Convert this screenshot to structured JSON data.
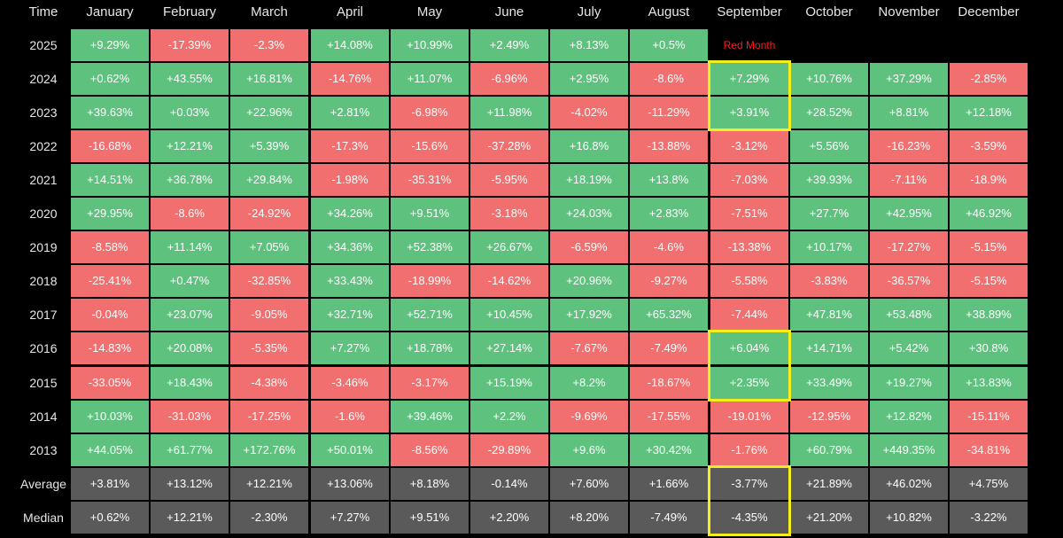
{
  "chart_data": {
    "type": "heatmap",
    "corner_label": "Time",
    "columns": [
      "January",
      "February",
      "March",
      "April",
      "May",
      "June",
      "July",
      "August",
      "September",
      "October",
      "November",
      "December"
    ],
    "rows": [
      {
        "label": "2025",
        "values": [
          "+9.29%",
          "-17.39%",
          "-2.3%",
          "+14.08%",
          "+10.99%",
          "+2.49%",
          "+8.13%",
          "+0.5%",
          null,
          null,
          null,
          null
        ]
      },
      {
        "label": "2024",
        "values": [
          "+0.62%",
          "+43.55%",
          "+16.81%",
          "-14.76%",
          "+11.07%",
          "-6.96%",
          "+2.95%",
          "-8.6%",
          "+7.29%",
          "+10.76%",
          "+37.29%",
          "-2.85%"
        ]
      },
      {
        "label": "2023",
        "values": [
          "+39.63%",
          "+0.03%",
          "+22.96%",
          "+2.81%",
          "-6.98%",
          "+11.98%",
          "-4.02%",
          "-11.29%",
          "+3.91%",
          "+28.52%",
          "+8.81%",
          "+12.18%"
        ]
      },
      {
        "label": "2022",
        "values": [
          "-16.68%",
          "+12.21%",
          "+5.39%",
          "-17.3%",
          "-15.6%",
          "-37.28%",
          "+16.8%",
          "-13.88%",
          "-3.12%",
          "+5.56%",
          "-16.23%",
          "-3.59%"
        ]
      },
      {
        "label": "2021",
        "values": [
          "+14.51%",
          "+36.78%",
          "+29.84%",
          "-1.98%",
          "-35.31%",
          "-5.95%",
          "+18.19%",
          "+13.8%",
          "-7.03%",
          "+39.93%",
          "-7.11%",
          "-18.9%"
        ]
      },
      {
        "label": "2020",
        "values": [
          "+29.95%",
          "-8.6%",
          "-24.92%",
          "+34.26%",
          "+9.51%",
          "-3.18%",
          "+24.03%",
          "+2.83%",
          "-7.51%",
          "+27.7%",
          "+42.95%",
          "+46.92%"
        ]
      },
      {
        "label": "2019",
        "values": [
          "-8.58%",
          "+11.14%",
          "+7.05%",
          "+34.36%",
          "+52.38%",
          "+26.67%",
          "-6.59%",
          "-4.6%",
          "-13.38%",
          "+10.17%",
          "-17.27%",
          "-5.15%"
        ]
      },
      {
        "label": "2018",
        "values": [
          "-25.41%",
          "+0.47%",
          "-32.85%",
          "+33.43%",
          "-18.99%",
          "-14.62%",
          "+20.96%",
          "-9.27%",
          "-5.58%",
          "-3.83%",
          "-36.57%",
          "-5.15%"
        ]
      },
      {
        "label": "2017",
        "values": [
          "-0.04%",
          "+23.07%",
          "-9.05%",
          "+32.71%",
          "+52.71%",
          "+10.45%",
          "+17.92%",
          "+65.32%",
          "-7.44%",
          "+47.81%",
          "+53.48%",
          "+38.89%"
        ]
      },
      {
        "label": "2016",
        "values": [
          "-14.83%",
          "+20.08%",
          "-5.35%",
          "+7.27%",
          "+18.78%",
          "+27.14%",
          "-7.67%",
          "-7.49%",
          "+6.04%",
          "+14.71%",
          "+5.42%",
          "+30.8%"
        ]
      },
      {
        "label": "2015",
        "values": [
          "-33.05%",
          "+18.43%",
          "-4.38%",
          "-3.46%",
          "-3.17%",
          "+15.19%",
          "+8.2%",
          "-18.67%",
          "+2.35%",
          "+33.49%",
          "+19.27%",
          "+13.83%"
        ]
      },
      {
        "label": "2014",
        "values": [
          "+10.03%",
          "-31.03%",
          "-17.25%",
          "-1.6%",
          "+39.46%",
          "+2.2%",
          "-9.69%",
          "-17.55%",
          "-19.01%",
          "-12.95%",
          "+12.82%",
          "-15.11%"
        ]
      },
      {
        "label": "2013",
        "values": [
          "+44.05%",
          "+61.77%",
          "+172.76%",
          "+50.01%",
          "-8.56%",
          "-29.89%",
          "+9.6%",
          "+30.42%",
          "-1.76%",
          "+60.79%",
          "+449.35%",
          "-34.81%"
        ]
      },
      {
        "label": "Average",
        "summary": true,
        "values": [
          "+3.81%",
          "+13.12%",
          "+12.21%",
          "+13.06%",
          "+8.18%",
          "-0.14%",
          "+7.60%",
          "+1.66%",
          "-3.77%",
          "+21.89%",
          "+46.02%",
          "+4.75%"
        ]
      },
      {
        "label": "Median",
        "summary": true,
        "values": [
          "+0.62%",
          "+12.21%",
          "-2.30%",
          "+7.27%",
          "+9.51%",
          "+2.20%",
          "+8.20%",
          "-7.49%",
          "-4.35%",
          "+21.20%",
          "+10.82%",
          "-3.22%"
        ]
      }
    ],
    "annotation": {
      "text": "Red Month",
      "row": "2025",
      "column": "September",
      "color": "#ff1a1a"
    },
    "highlights": [
      {
        "column": "September",
        "from_row": "2024",
        "to_row": "2023"
      },
      {
        "column": "September",
        "from_row": "2016",
        "to_row": "2015"
      },
      {
        "column": "September",
        "from_row": "Average",
        "to_row": "Median"
      }
    ],
    "colors": {
      "positive": "#5ec27e",
      "negative": "#f16f6f",
      "summary": "#5a5a5a",
      "highlight": "#f3ee1c",
      "background": "#000000"
    }
  }
}
